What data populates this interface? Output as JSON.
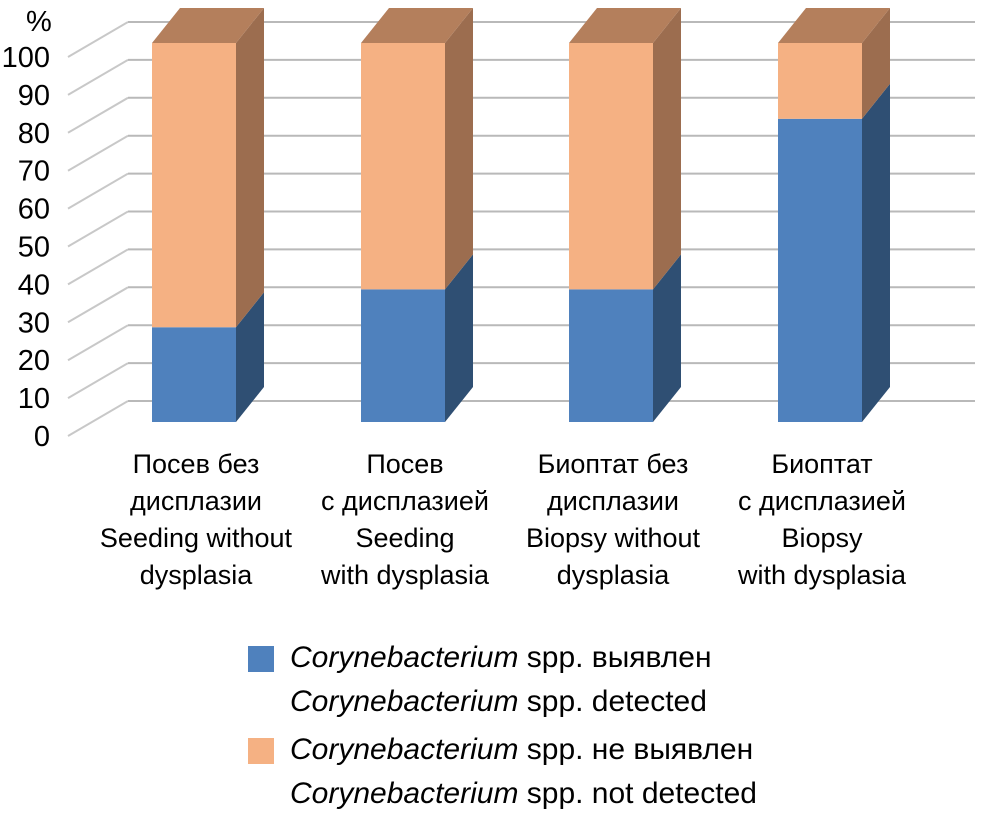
{
  "chart_data": {
    "type": "bar",
    "stacked": true,
    "three_d": true,
    "y_unit_label": "%",
    "yticks": [
      "0",
      "10",
      "20",
      "30",
      "40",
      "50",
      "60",
      "70",
      "80",
      "90",
      "100"
    ],
    "ylim": [
      0,
      100
    ],
    "grid": true,
    "categories": [
      [
        "Посев без",
        "дисплазии",
        "Seeding without",
        "dysplasia"
      ],
      [
        "Посев",
        "с дисплазией",
        "Seeding",
        "with dysplasia"
      ],
      [
        "Биоптат без",
        "дисплазии",
        "Biopsy without",
        "dysplasia"
      ],
      [
        "Биоптат",
        "с дисплазией",
        "Biopsy",
        "with dysplasia"
      ]
    ],
    "series": [
      {
        "name": [
          "Corynebacterium",
          " spp. выявлен",
          "Corynebacterium",
          " spp. detected"
        ],
        "color": "#4f81bd",
        "side_color": "#2f4f73",
        "values": [
          25,
          35,
          35,
          80
        ]
      },
      {
        "name": [
          "Corynebacterium",
          " spp. не выявлен",
          "Corynebacterium",
          " spp. not detected"
        ],
        "color": "#f5b183",
        "side_color": "#9c6d4f",
        "top_color": "#b47f5c",
        "values": [
          75,
          65,
          65,
          20
        ]
      }
    ],
    "legend_position": "bottom"
  }
}
